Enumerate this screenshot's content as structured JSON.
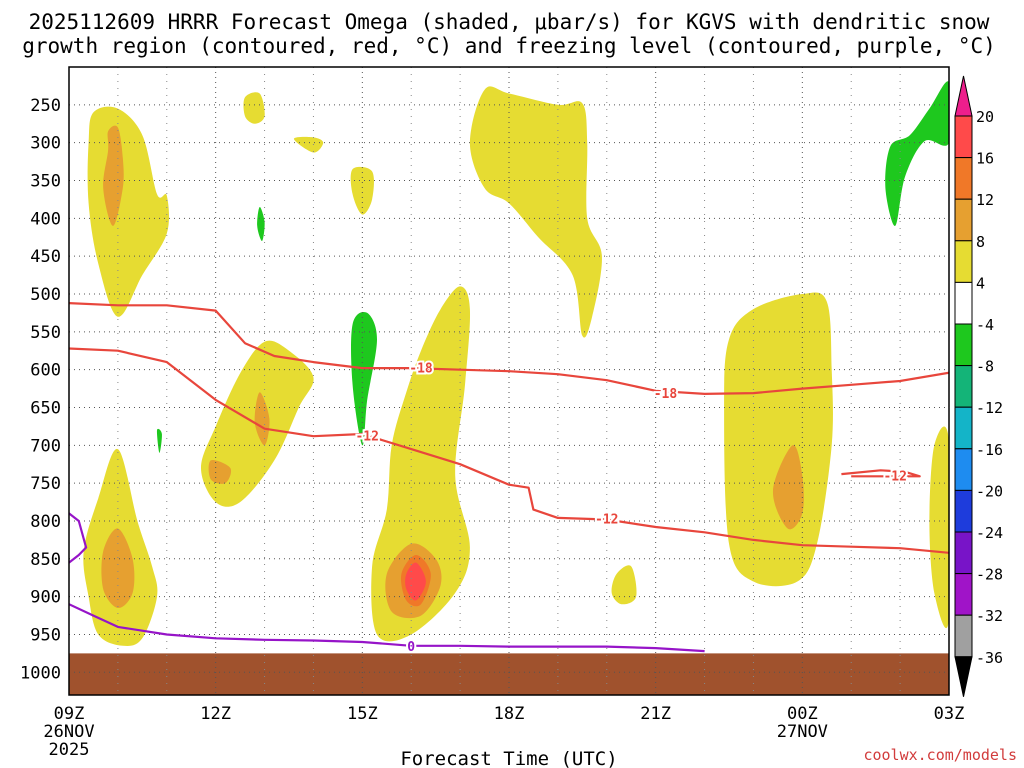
{
  "chart_data": {
    "type": "heatmap",
    "title_line1": "2025112609 HRRR Forecast Omega (shaded, μbar/s) for KGVS with dendritic snow",
    "title_line2": "growth region (contoured, red, °C) and freezing level (contoured, purple, °C)",
    "xlabel": "Forecast Time (UTC)",
    "x_ticks": [
      {
        "hour": 0,
        "label": "09Z",
        "sub1": "26NOV",
        "sub2": "2025"
      },
      {
        "hour": 3,
        "label": "12Z",
        "sub1": "",
        "sub2": ""
      },
      {
        "hour": 6,
        "label": "15Z",
        "sub1": "",
        "sub2": ""
      },
      {
        "hour": 9,
        "label": "18Z",
        "sub1": "",
        "sub2": ""
      },
      {
        "hour": 12,
        "label": "21Z",
        "sub1": "",
        "sub2": ""
      },
      {
        "hour": 15,
        "label": "00Z",
        "sub1": "27NOV",
        "sub2": ""
      },
      {
        "hour": 18,
        "label": "03Z",
        "sub1": "",
        "sub2": ""
      }
    ],
    "xlim_hours": [
      0,
      18
    ],
    "y_ticks": [
      250,
      300,
      350,
      400,
      450,
      500,
      550,
      600,
      650,
      700,
      750,
      800,
      850,
      900,
      950,
      1000
    ],
    "ylim_hPa": [
      1030,
      200
    ],
    "ylabel": "",
    "colorbar": {
      "labels": [
        "20",
        "16",
        "12",
        "8",
        "4",
        "-4",
        "-8",
        "-12",
        "-16",
        "-20",
        "-24",
        "-28",
        "-32",
        "-36"
      ],
      "colors": [
        "#ff4a4a",
        "#f07828",
        "#e6a030",
        "#e6dc32",
        "#ffffff",
        "#1ec81e",
        "#14b478",
        "#14b4c8",
        "#1e8cf0",
        "#1e3cdc",
        "#7814c8",
        "#a014c8",
        "#a0a0a0"
      ],
      "top_cap": "#ee1e8c",
      "bottom_cap": "#000000"
    },
    "omega_fills": [
      {
        "color": "#e6dc32",
        "pts": [
          [
            0.5,
            260
          ],
          [
            1.0,
            255
          ],
          [
            1.5,
            290
          ],
          [
            1.8,
            368
          ],
          [
            2.0,
            370
          ],
          [
            2.0,
            420
          ],
          [
            1.5,
            475
          ],
          [
            1.0,
            530
          ],
          [
            0.6,
            460
          ],
          [
            0.4,
            380
          ],
          [
            0.4,
            300
          ]
        ]
      },
      {
        "color": "#e6a030",
        "pts": [
          [
            0.8,
            285
          ],
          [
            1.0,
            280
          ],
          [
            1.1,
            320
          ],
          [
            1.1,
            360
          ],
          [
            0.9,
            410
          ],
          [
            0.7,
            360
          ],
          [
            0.8,
            310
          ]
        ]
      },
      {
        "color": "#e6dc32",
        "pts": [
          [
            3.6,
            240
          ],
          [
            3.9,
            235
          ],
          [
            4.0,
            265
          ],
          [
            3.8,
            275
          ],
          [
            3.6,
            265
          ]
        ]
      },
      {
        "color": "#e6dc32",
        "pts": [
          [
            4.6,
            295
          ],
          [
            5.0,
            293
          ],
          [
            5.2,
            300
          ],
          [
            5.0,
            313
          ]
        ]
      },
      {
        "color": "#e6dc32",
        "pts": [
          [
            5.8,
            335
          ],
          [
            6.2,
            338
          ],
          [
            6.2,
            375
          ],
          [
            6.0,
            395
          ],
          [
            5.8,
            368
          ]
        ]
      },
      {
        "color": "#e6dc32",
        "pts": [
          [
            8.5,
            230
          ],
          [
            9.0,
            235
          ],
          [
            10.0,
            250
          ],
          [
            10.5,
            248
          ],
          [
            10.6,
            300
          ],
          [
            10.6,
            400
          ],
          [
            10.9,
            450
          ],
          [
            10.7,
            530
          ],
          [
            10.5,
            555
          ],
          [
            10.3,
            475
          ],
          [
            9.6,
            425
          ],
          [
            9.0,
            380
          ],
          [
            8.5,
            360
          ],
          [
            8.2,
            300
          ]
        ]
      },
      {
        "color": "#e6dc32",
        "pts": [
          [
            3.0,
            675
          ],
          [
            3.5,
            605
          ],
          [
            4.0,
            563
          ],
          [
            4.5,
            575
          ],
          [
            5.0,
            610
          ],
          [
            4.7,
            650
          ],
          [
            4.2,
            720
          ],
          [
            3.5,
            775
          ],
          [
            3.0,
            775
          ],
          [
            2.7,
            730
          ]
        ]
      },
      {
        "color": "#e6a030",
        "pts": [
          [
            3.9,
            630
          ],
          [
            4.1,
            665
          ],
          [
            4.0,
            700
          ],
          [
            3.8,
            670
          ]
        ]
      },
      {
        "color": "#e6a030",
        "pts": [
          [
            2.9,
            720
          ],
          [
            3.3,
            730
          ],
          [
            3.2,
            750
          ],
          [
            2.9,
            745
          ]
        ]
      },
      {
        "color": "#e6dc32",
        "pts": [
          [
            0.3,
            840
          ],
          [
            0.6,
            770
          ],
          [
            1.0,
            705
          ],
          [
            1.4,
            800
          ],
          [
            1.7,
            860
          ],
          [
            1.8,
            900
          ],
          [
            1.5,
            955
          ],
          [
            1.1,
            965
          ],
          [
            0.6,
            950
          ],
          [
            0.4,
            900
          ]
        ]
      },
      {
        "color": "#e6a030",
        "pts": [
          [
            0.7,
            840
          ],
          [
            1.0,
            810
          ],
          [
            1.3,
            850
          ],
          [
            1.3,
            895
          ],
          [
            1.0,
            915
          ],
          [
            0.7,
            890
          ]
        ]
      },
      {
        "color": "#e6dc32",
        "pts": [
          [
            6.6,
            700
          ],
          [
            6.9,
            630
          ],
          [
            7.2,
            575
          ],
          [
            7.6,
            520
          ],
          [
            8.0,
            490
          ],
          [
            8.2,
            520
          ],
          [
            8.1,
            620
          ],
          [
            7.9,
            740
          ],
          [
            8.2,
            835
          ],
          [
            7.9,
            895
          ],
          [
            7.0,
            950
          ],
          [
            6.3,
            950
          ],
          [
            6.2,
            860
          ],
          [
            6.5,
            785
          ]
        ]
      },
      {
        "color": "#e6a030",
        "pts": [
          [
            6.5,
            870
          ],
          [
            7.0,
            830
          ],
          [
            7.5,
            850
          ],
          [
            7.6,
            885
          ],
          [
            7.2,
            925
          ],
          [
            6.6,
            920
          ]
        ]
      },
      {
        "color": "#f07828",
        "pts": [
          [
            6.8,
            870
          ],
          [
            7.1,
            845
          ],
          [
            7.4,
            870
          ],
          [
            7.2,
            910
          ],
          [
            6.9,
            905
          ]
        ]
      },
      {
        "color": "#ff4a4a",
        "pts": [
          [
            6.9,
            870
          ],
          [
            7.1,
            855
          ],
          [
            7.3,
            880
          ],
          [
            7.1,
            905
          ],
          [
            6.9,
            890
          ]
        ]
      },
      {
        "color": "#e6dc32",
        "pts": [
          [
            11.2,
            870
          ],
          [
            11.5,
            860
          ],
          [
            11.6,
            900
          ],
          [
            11.3,
            910
          ],
          [
            11.1,
            895
          ]
        ]
      },
      {
        "color": "#e6dc32",
        "pts": [
          [
            13.5,
            560
          ],
          [
            14.0,
            520
          ],
          [
            15.0,
            500
          ],
          [
            15.5,
            510
          ],
          [
            15.6,
            600
          ],
          [
            15.6,
            700
          ],
          [
            15.3,
            830
          ],
          [
            14.9,
            880
          ],
          [
            14.0,
            880
          ],
          [
            13.5,
            830
          ],
          [
            13.4,
            650
          ]
        ]
      },
      {
        "color": "#e6a030",
        "pts": [
          [
            14.4,
            760
          ],
          [
            14.8,
            700
          ],
          [
            15.0,
            740
          ],
          [
            15.0,
            790
          ],
          [
            14.7,
            810
          ]
        ]
      },
      {
        "color": "#e6dc32",
        "pts": [
          [
            17.7,
            700
          ],
          [
            18.0,
            695
          ],
          [
            18.0,
            930
          ],
          [
            17.7,
            895
          ],
          [
            17.6,
            800
          ]
        ]
      }
    ],
    "green_fills": [
      {
        "color": "#1ec81e",
        "pts": [
          [
            3.9,
            385
          ],
          [
            4.0,
            405
          ],
          [
            3.95,
            430
          ],
          [
            3.85,
            410
          ]
        ]
      },
      {
        "color": "#1ec81e",
        "pts": [
          [
            5.8,
            540
          ],
          [
            6.1,
            525
          ],
          [
            6.3,
            560
          ],
          [
            6.1,
            640
          ],
          [
            6.0,
            700
          ],
          [
            5.8,
            620
          ]
        ]
      },
      {
        "color": "#1ec81e",
        "pts": [
          [
            1.8,
            680
          ],
          [
            1.9,
            685
          ],
          [
            1.85,
            710
          ]
        ]
      },
      {
        "color": "#1ec81e",
        "pts": [
          [
            18.0,
            220
          ],
          [
            18.0,
            300
          ],
          [
            17.5,
            298
          ],
          [
            17.1,
            345
          ],
          [
            16.9,
            410
          ],
          [
            16.7,
            360
          ],
          [
            16.8,
            305
          ],
          [
            17.2,
            290
          ],
          [
            17.6,
            255
          ]
        ]
      }
    ],
    "ground": {
      "top_hPa": 975,
      "color": "#a0522d"
    },
    "dgz_contours": [
      {
        "level": "-18",
        "color": "#e8463c",
        "pts": [
          [
            0,
            512
          ],
          [
            1,
            515
          ],
          [
            2,
            515
          ],
          [
            3,
            522
          ],
          [
            3.6,
            565
          ],
          [
            4.2,
            582
          ],
          [
            5,
            590
          ],
          [
            6,
            598
          ],
          [
            7,
            598
          ],
          [
            8,
            600
          ],
          [
            9,
            602
          ],
          [
            10,
            606
          ],
          [
            11,
            614
          ],
          [
            12,
            628
          ],
          [
            13,
            632
          ],
          [
            14,
            631
          ],
          [
            15,
            625
          ],
          [
            16,
            620
          ],
          [
            17,
            615
          ],
          [
            18,
            604
          ]
        ],
        "labels": [
          {
            "hour": 7.2,
            "p": 597
          },
          {
            "hour": 12.2,
            "p": 631
          }
        ]
      },
      {
        "level": "-12",
        "color": "#e8463c",
        "pts": [
          [
            0,
            572
          ],
          [
            1,
            575
          ],
          [
            2,
            590
          ],
          [
            3,
            640
          ],
          [
            4,
            678
          ],
          [
            5,
            688
          ],
          [
            6,
            685
          ],
          [
            7,
            705
          ],
          [
            8,
            725
          ],
          [
            9,
            752
          ],
          [
            9.4,
            756
          ],
          [
            9.5,
            785
          ],
          [
            10,
            796
          ],
          [
            11,
            798
          ],
          [
            12,
            808
          ],
          [
            13,
            815
          ],
          [
            14,
            825
          ],
          [
            15,
            832
          ],
          [
            16,
            834
          ],
          [
            17,
            836
          ],
          [
            18,
            842
          ]
        ],
        "labels": [
          {
            "hour": 6.1,
            "p": 687
          },
          {
            "hour": 11.0,
            "p": 797
          }
        ]
      },
      {
        "level": "-12",
        "color": "#e8463c",
        "pts": [
          [
            15.8,
            738
          ],
          [
            16.6,
            733
          ],
          [
            17.1,
            735
          ],
          [
            17.4,
            741
          ],
          [
            16.8,
            741
          ],
          [
            16.0,
            741
          ]
        ],
        "labels": [
          {
            "hour": 16.9,
            "p": 740
          }
        ]
      }
    ],
    "freezing_contours": [
      {
        "level": "0",
        "color": "#9614c8",
        "pts": [
          [
            0,
            910
          ],
          [
            0.5,
            925
          ],
          [
            1,
            940
          ],
          [
            2,
            950
          ],
          [
            3,
            955
          ],
          [
            4,
            957
          ],
          [
            5,
            958
          ],
          [
            6,
            960
          ],
          [
            7,
            965
          ],
          [
            8,
            965
          ],
          [
            9,
            966
          ],
          [
            10,
            966
          ],
          [
            11,
            966
          ],
          [
            12,
            968
          ],
          [
            13,
            972
          ]
        ],
        "labels": [
          {
            "hour": 7.0,
            "p": 965
          }
        ]
      },
      {
        "level": "",
        "color": "#9614c8",
        "pts": [
          [
            0,
            790
          ],
          [
            0.2,
            800
          ],
          [
            0.35,
            835
          ],
          [
            0.2,
            845
          ],
          [
            0,
            855
          ]
        ],
        "labels": []
      }
    ]
  },
  "credit": "coolwx.com/models"
}
